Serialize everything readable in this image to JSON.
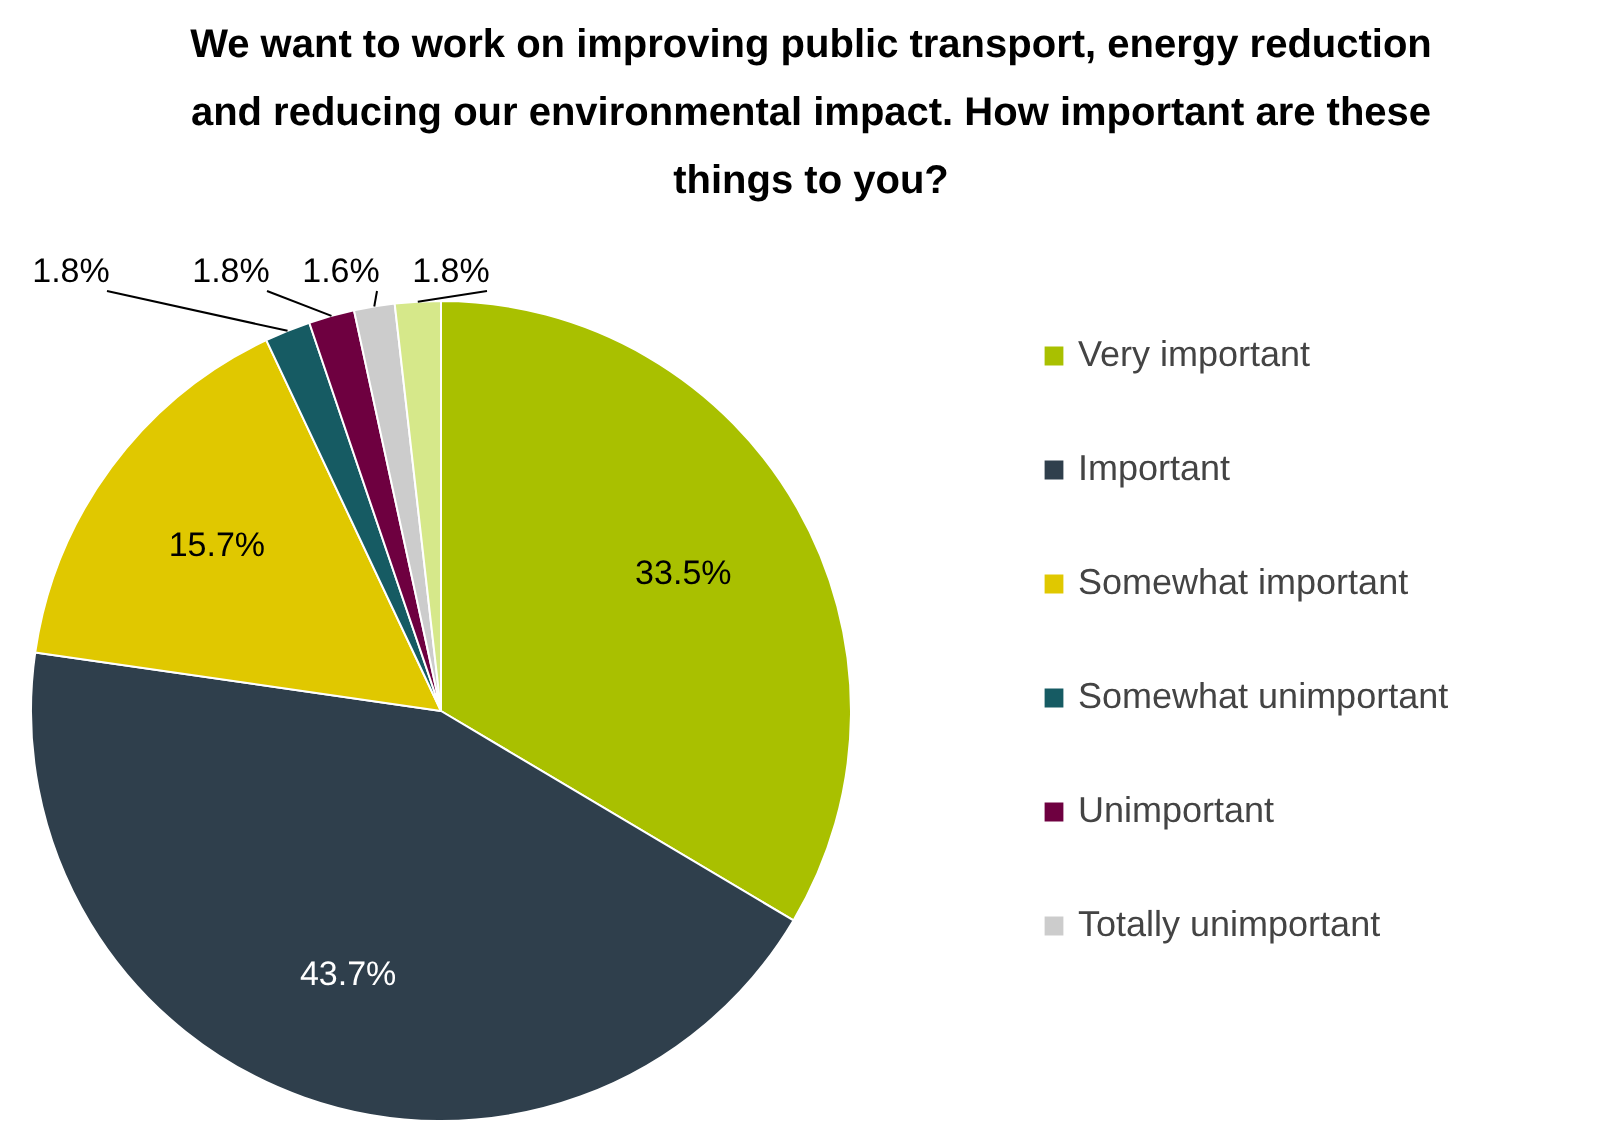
{
  "chart_data": {
    "type": "pie",
    "title": "We want to work on improving public transport, energy reduction and reducing our environmental impact. How important are these things to you?",
    "categories": [
      "Very important",
      "Important",
      "Somewhat important",
      "Somewhat unimportant",
      "Unimportant",
      "Totally unimportant",
      null
    ],
    "values": [
      33.5,
      43.7,
      15.7,
      1.8,
      1.8,
      1.6,
      1.8
    ],
    "colors": [
      "#a9c000",
      "#2f3f4c",
      "#e0c800",
      "#165b63",
      "#6e0040",
      "#cccccc",
      "#d6e88a"
    ],
    "value_labels": [
      "33.5%",
      "43.7%",
      "15.7%",
      "1.8%",
      "1.8%",
      "1.6%",
      "1.8%"
    ],
    "legend": "right"
  }
}
